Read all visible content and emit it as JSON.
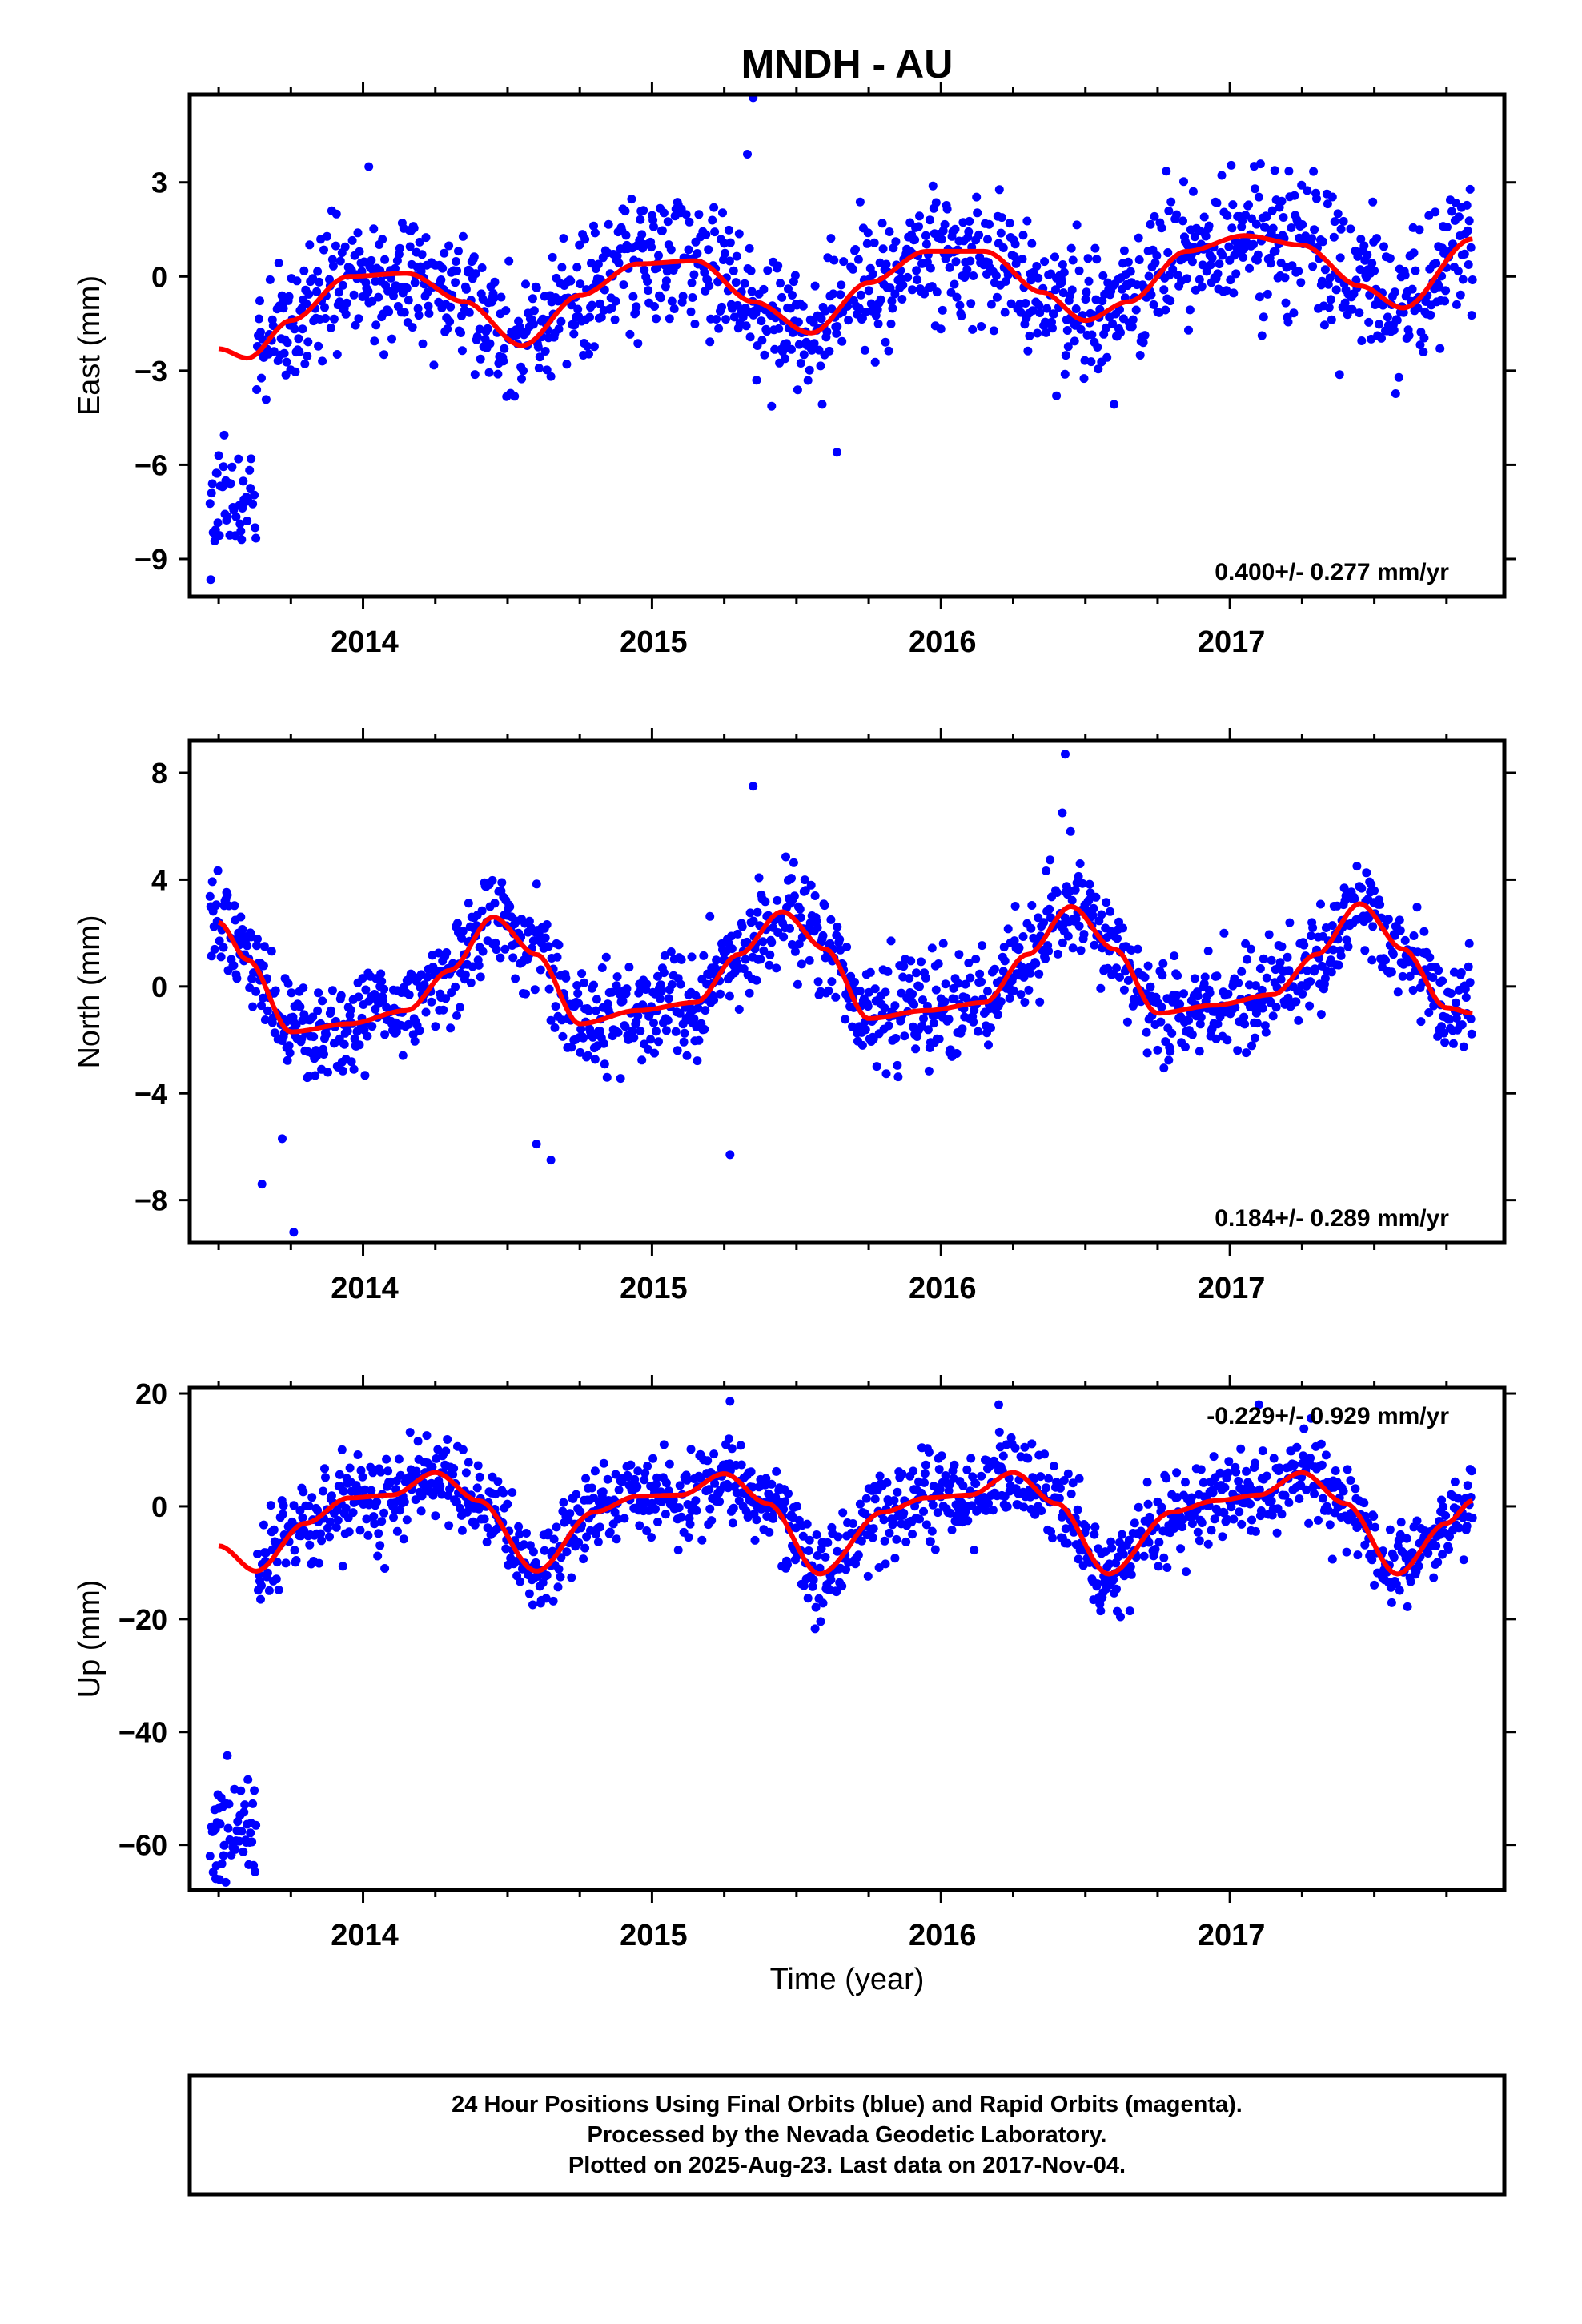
{
  "title": "MNDH - AU",
  "colors": {
    "points": "#0000ff",
    "model": "#ff0000",
    "frame": "#000000"
  },
  "x_axis": {
    "range": [
      2013.4,
      2017.95
    ],
    "tick_labels": [
      "2014",
      "2015",
      "2016",
      "2017"
    ],
    "label": "Time (year)"
  },
  "chart_data": [
    {
      "type": "scatter",
      "id": "east",
      "ylabel": "East (mm)",
      "ylim": [
        -10.2,
        5.8
      ],
      "yticks": [
        3,
        0,
        -3,
        -6,
        -9
      ],
      "rate_text": "0.400+/- 0.277 mm/yr",
      "series": [
        {
          "kind": "daily_positions",
          "x_start": 2013.47,
          "x_end": 2017.84,
          "sample_step_days": 1,
          "anomaly_window": [
            2013.47,
            2013.63
          ],
          "anomaly_level_mm": -7.0,
          "scatter_sd_mm": 1.05,
          "outliers": [
            [
              2015.35,
              5.7
            ],
            [
              2015.33,
              3.9
            ],
            [
              2015.64,
              -5.6
            ],
            [
              2014.02,
              3.5
            ],
            [
              2016.4,
              -3.8
            ]
          ]
        },
        {
          "kind": "seasonal_model",
          "x": [
            2013.5,
            2013.6,
            2013.75,
            2013.95,
            2014.15,
            2014.35,
            2014.55,
            2014.75,
            2014.95,
            2015.15,
            2015.35,
            2015.55,
            2015.75,
            2015.95,
            2016.15,
            2016.35,
            2016.5,
            2016.65,
            2016.85,
            2017.05,
            2017.25,
            2017.45,
            2017.6,
            2017.84
          ],
          "y": [
            -2.3,
            -2.6,
            -1.4,
            0.0,
            0.1,
            -0.8,
            -2.2,
            -0.6,
            0.4,
            0.5,
            -0.8,
            -1.8,
            -0.2,
            0.8,
            0.8,
            -0.5,
            -1.4,
            -0.8,
            0.8,
            1.3,
            1.0,
            -0.3,
            -1.0,
            1.2
          ]
        }
      ]
    },
    {
      "type": "scatter",
      "id": "north",
      "ylabel": "North (mm)",
      "ylim": [
        -9.6,
        9.2
      ],
      "yticks": [
        8,
        4,
        0,
        -4,
        -8
      ],
      "rate_text": "0.184+/- 0.289 mm/yr",
      "series": [
        {
          "kind": "daily_positions",
          "x_start": 2013.47,
          "x_end": 2017.84,
          "sample_step_days": 1,
          "scatter_sd_mm": 0.95,
          "outliers": [
            [
              2016.43,
              8.7
            ],
            [
              2015.35,
              7.5
            ],
            [
              2016.42,
              6.5
            ],
            [
              2013.76,
              -9.2
            ],
            [
              2013.65,
              -7.4
            ],
            [
              2014.65,
              -6.5
            ],
            [
              2015.27,
              -6.3
            ],
            [
              2014.6,
              -5.9
            ],
            [
              2013.72,
              -5.7
            ]
          ]
        },
        {
          "kind": "seasonal_model",
          "x": [
            2013.5,
            2013.6,
            2013.75,
            2013.95,
            2014.15,
            2014.3,
            2014.45,
            2014.6,
            2014.75,
            2014.95,
            2015.15,
            2015.3,
            2015.45,
            2015.6,
            2015.75,
            2015.95,
            2016.15,
            2016.3,
            2016.45,
            2016.6,
            2016.75,
            2016.95,
            2017.15,
            2017.3,
            2017.45,
            2017.6,
            2017.75,
            2017.84
          ],
          "y": [
            2.4,
            1.0,
            -1.7,
            -1.4,
            -0.9,
            0.6,
            2.6,
            1.2,
            -1.4,
            -0.9,
            -0.6,
            1.2,
            2.8,
            1.4,
            -1.2,
            -0.9,
            -0.6,
            1.2,
            3.0,
            1.4,
            -1.0,
            -0.7,
            -0.3,
            1.2,
            3.1,
            1.4,
            -0.8,
            -1.0
          ]
        }
      ]
    },
    {
      "type": "scatter",
      "id": "up",
      "ylabel": "Up (mm)",
      "ylim": [
        -68,
        21
      ],
      "yticks": [
        20,
        0,
        -20,
        -40,
        -60
      ],
      "rate_text": "-0.229+/- 0.929 mm/yr",
      "series": [
        {
          "kind": "daily_positions",
          "x_start": 2013.47,
          "x_end": 2017.84,
          "sample_step_days": 1,
          "anomaly_window": [
            2013.47,
            2013.63
          ],
          "anomaly_level_mm": -58.0,
          "scatter_sd_mm": 3.8,
          "outliers": [
            [
              2015.27,
              18.6
            ],
            [
              2016.2,
              18.0
            ],
            [
              2017.1,
              18.0
            ],
            [
              2013.53,
              -44.2
            ],
            [
              2013.49,
              -66.0
            ]
          ]
        },
        {
          "kind": "seasonal_model",
          "x": [
            2013.5,
            2013.63,
            2013.8,
            2013.95,
            2014.1,
            2014.25,
            2014.4,
            2014.6,
            2014.8,
            2014.95,
            2015.1,
            2015.25,
            2015.4,
            2015.58,
            2015.8,
            2015.95,
            2016.1,
            2016.25,
            2016.4,
            2016.58,
            2016.8,
            2016.95,
            2017.1,
            2017.25,
            2017.4,
            2017.58,
            2017.75,
            2017.84
          ],
          "y": [
            -7.0,
            -11.5,
            -3.0,
            1.5,
            2.0,
            6.0,
            1.0,
            -11.5,
            -1.0,
            1.8,
            2.0,
            5.8,
            0.5,
            -12.0,
            -1.0,
            1.5,
            2.0,
            6.0,
            0.5,
            -12.0,
            -1.0,
            1.0,
            2.0,
            6.0,
            0.5,
            -12.0,
            -3.0,
            1.0
          ]
        }
      ]
    }
  ],
  "footer": {
    "line1": "24 Hour Positions Using Final Orbits (blue) and Rapid Orbits (magenta).",
    "line2": "Processed by the Nevada Geodetic Laboratory.",
    "line3": "Plotted on 2025-Aug-23. Last data on 2017-Nov-04."
  }
}
